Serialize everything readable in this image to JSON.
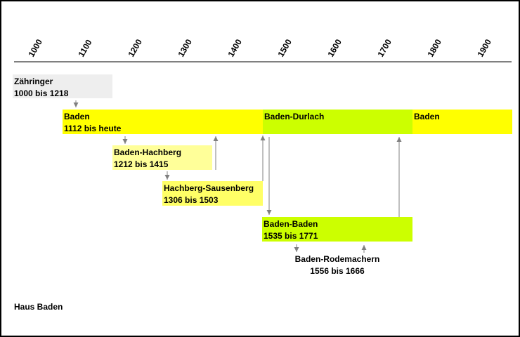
{
  "timeline": {
    "ticks": [
      "1000",
      "1100",
      "1200",
      "1300",
      "1400",
      "1500",
      "1600",
      "1700",
      "1800",
      "1900"
    ],
    "colors": {
      "axis": "#000000",
      "arrow": "#808080"
    }
  },
  "lineages": [
    {
      "id": "zaehringer",
      "name": "Zähringer",
      "range": "1000 bis 1218",
      "color": "#eeeeee"
    },
    {
      "id": "baden-1",
      "name": "Baden",
      "range": "1112 bis heute",
      "color": "#ffff00"
    },
    {
      "id": "baden-durlach",
      "name": "Baden-Durlach",
      "range": "",
      "color": "#ccff00"
    },
    {
      "id": "baden-2",
      "name": "Baden",
      "range": "",
      "color": "#ffff00"
    },
    {
      "id": "baden-hachberg",
      "name": "Baden-Hachberg",
      "range": "1212 bis 1415",
      "color": "#ffff99"
    },
    {
      "id": "hachberg-sausenberg",
      "name": "Hachberg-Sausenberg",
      "range": "1306 bis 1503",
      "color": "#ffff66"
    },
    {
      "id": "baden-baden",
      "name": "Baden-Baden",
      "range": "1535 bis 1771",
      "color": "#ccff00"
    },
    {
      "id": "baden-rodemachern",
      "name": "Baden-Rodemachern",
      "range": "1556 bis 1666",
      "color": ""
    }
  ],
  "footer": {
    "title": "Haus Baden"
  }
}
